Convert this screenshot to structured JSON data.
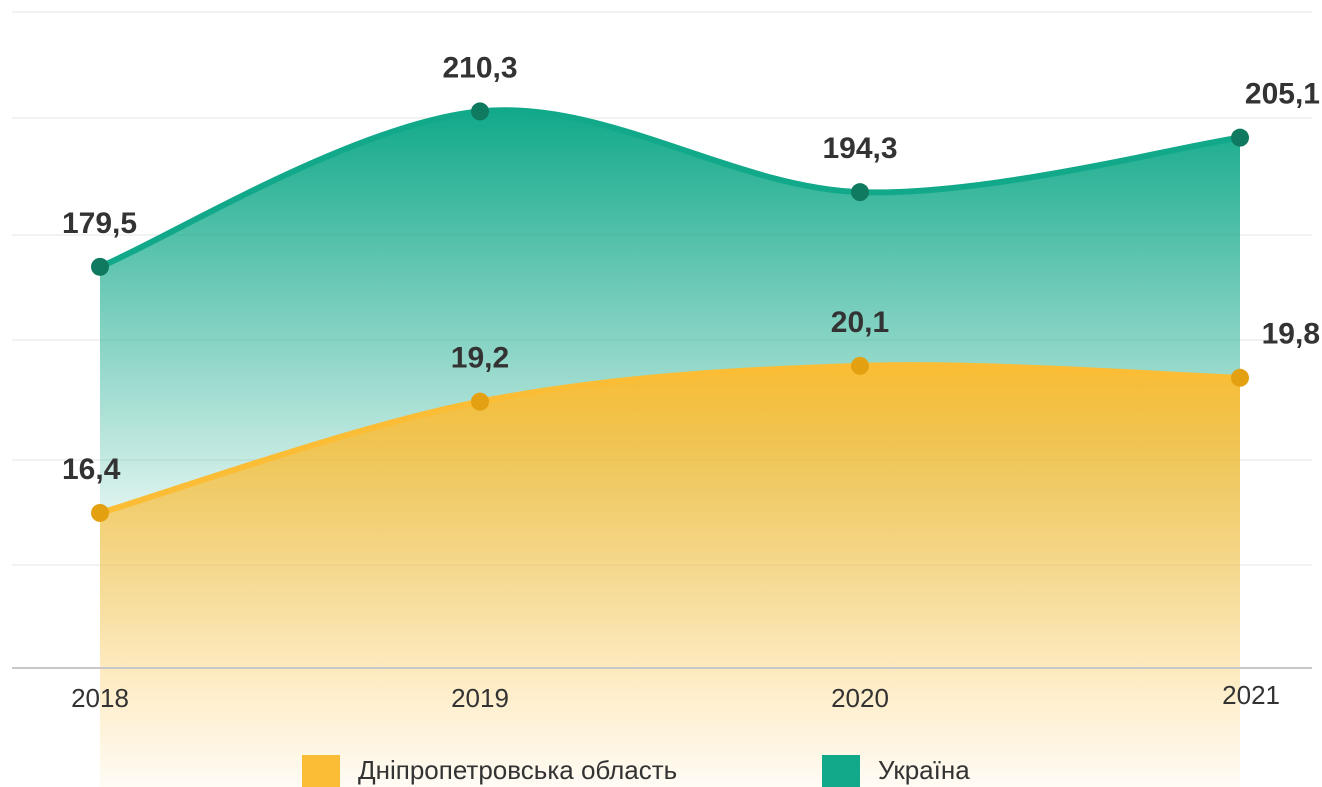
{
  "chart_data": {
    "type": "area",
    "categories": [
      "2018",
      "2019",
      "2020",
      "2021"
    ],
    "series": [
      {
        "name": "Україна",
        "color": "#12a98a",
        "values": [
          179.5,
          210.3,
          194.3,
          205.1
        ],
        "value_labels": [
          "179,5",
          "210,3",
          "194,3",
          "205,1"
        ]
      },
      {
        "name": "Дніпропетровська область",
        "color": "#fbbd35",
        "axis": "y2",
        "values": [
          16.4,
          19.2,
          20.1,
          19.8
        ],
        "value_labels": [
          "16,4",
          "19,2",
          "20,1",
          "19,8"
        ]
      }
    ],
    "ylim": [
      100,
      230
    ],
    "y2lim": [
      12.5,
      29
    ],
    "legend": "bottom"
  }
}
